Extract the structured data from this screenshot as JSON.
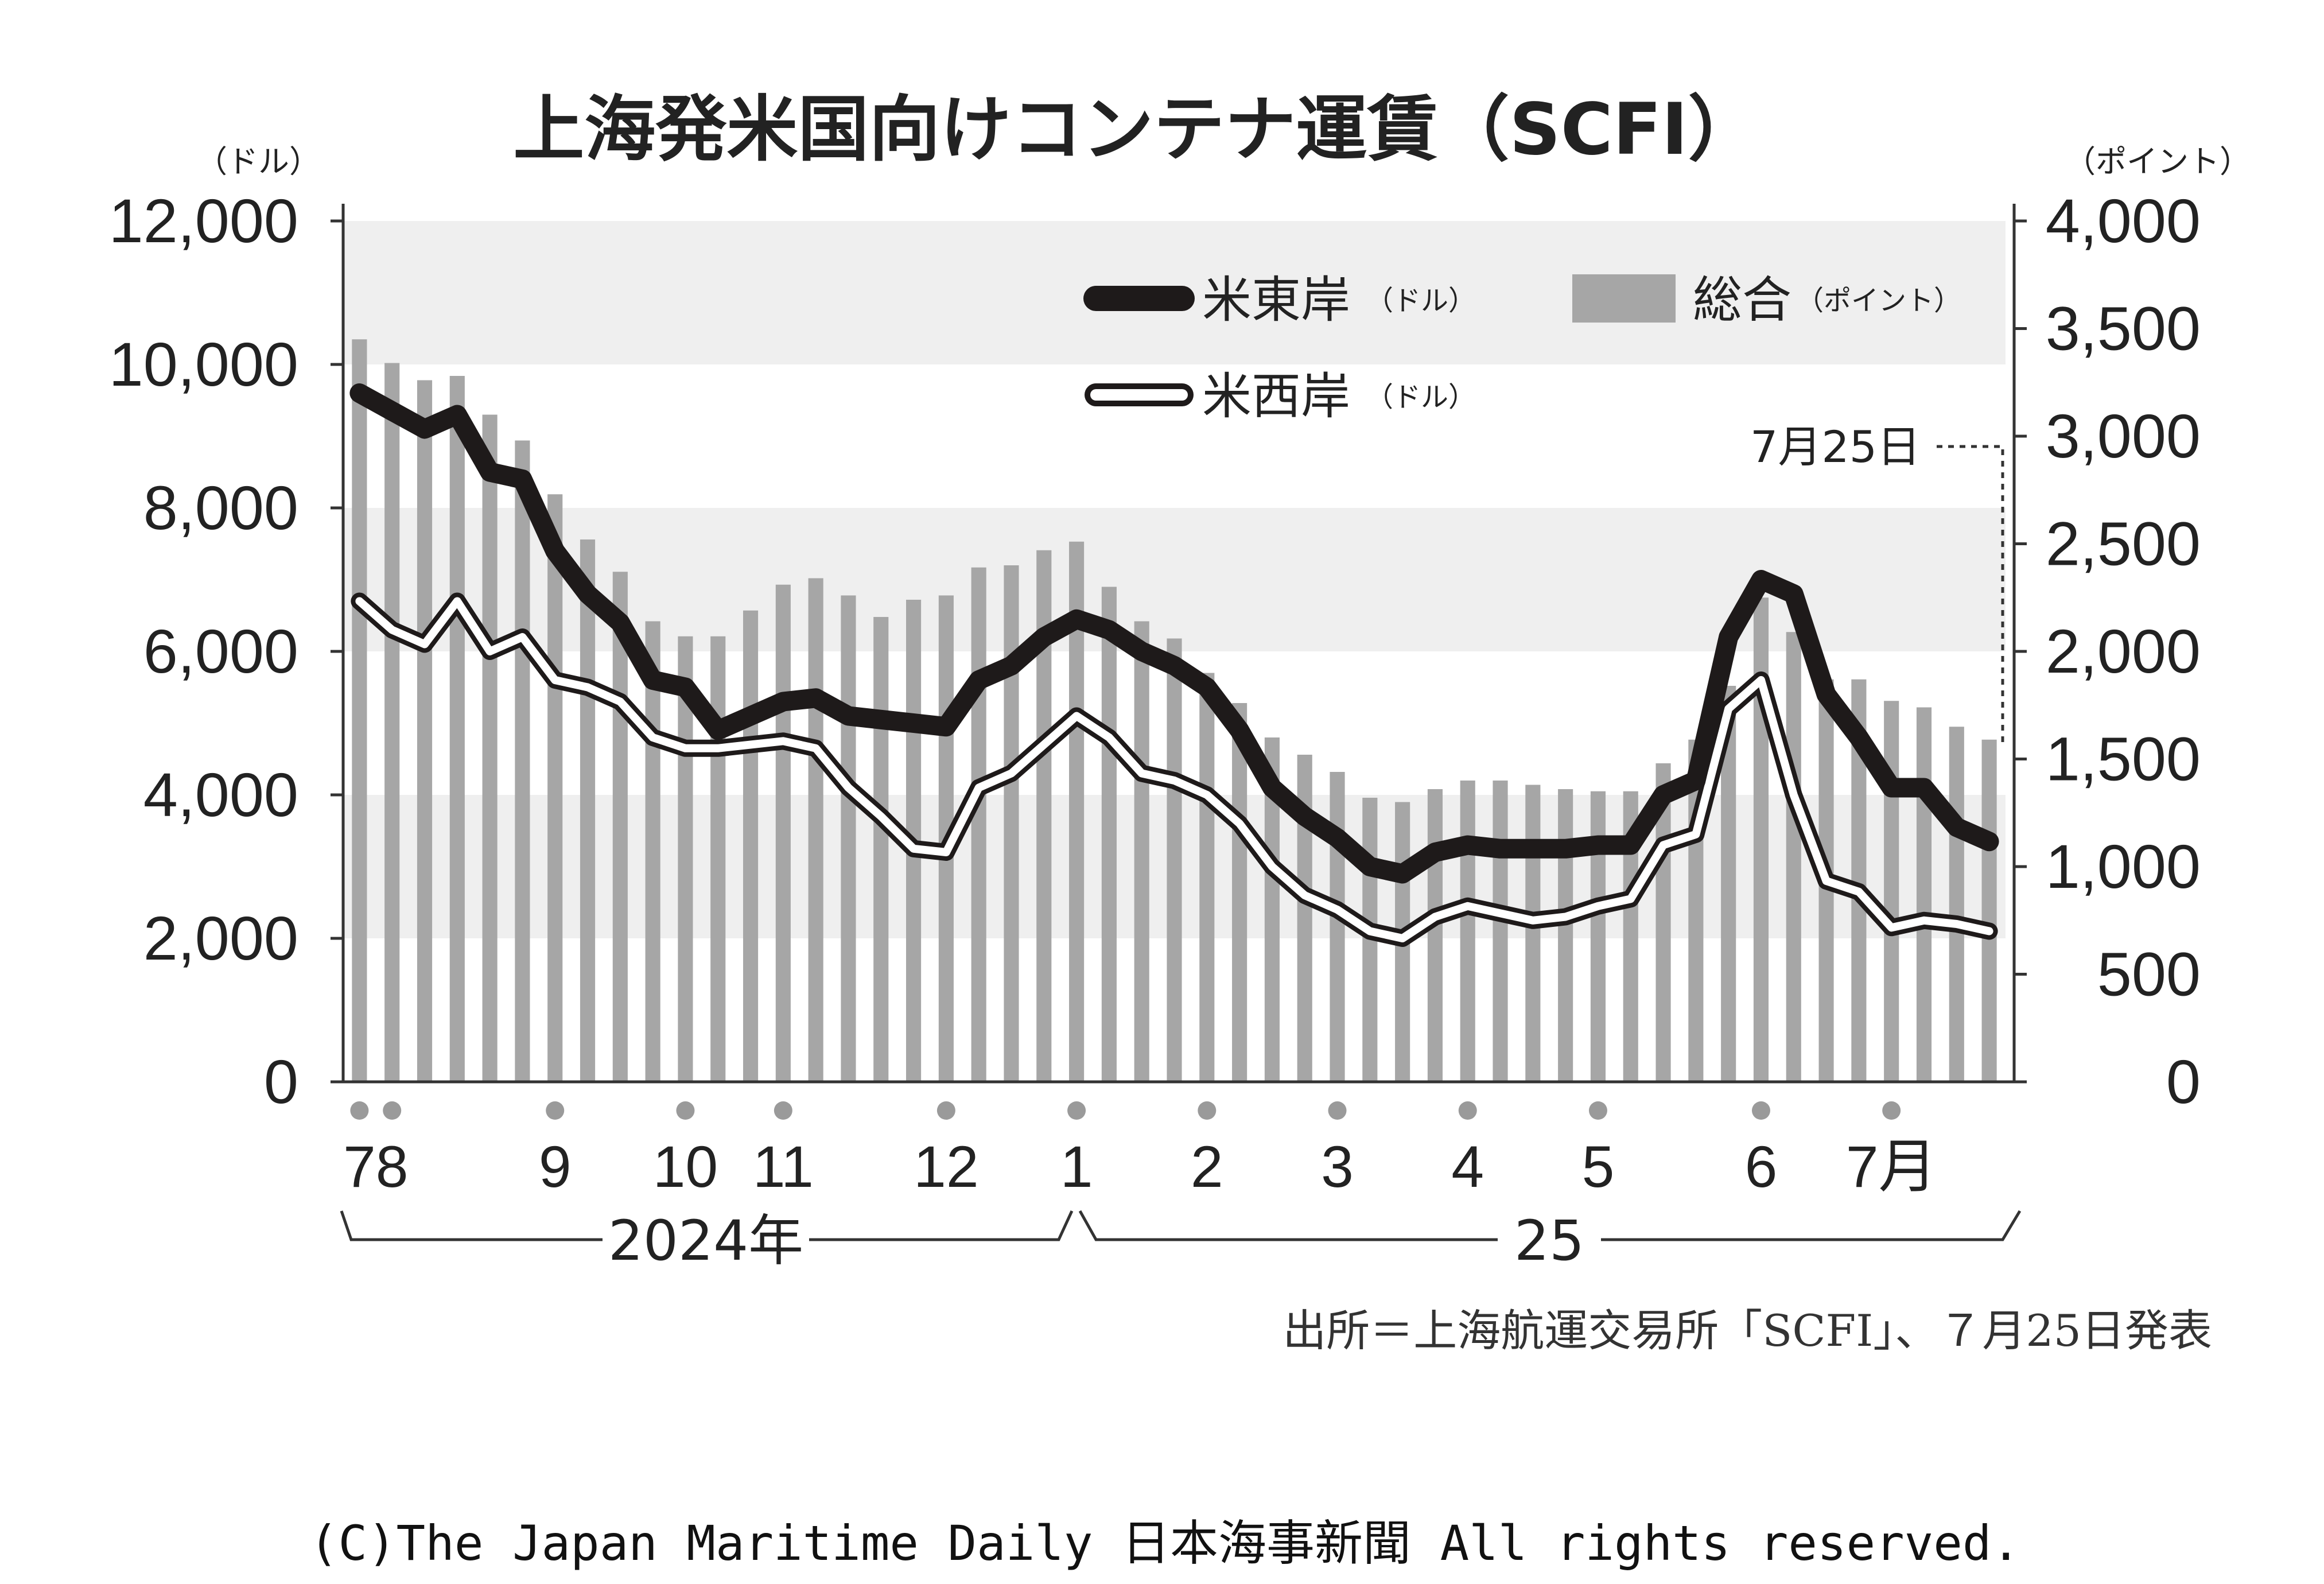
{
  "title": "上海発米国向けコンテナ運賃（SCFI）",
  "left_unit": "（ドル）",
  "right_unit": "（ポイント）",
  "left_ticks": [
    "0",
    "2,000",
    "4,000",
    "6,000",
    "8,000",
    "10,000",
    "12,000"
  ],
  "right_ticks": [
    "0",
    "500",
    "1,000",
    "1,500",
    "2,000",
    "2,500",
    "3,000",
    "3,500",
    "4,000"
  ],
  "legend": {
    "east": {
      "label": "米東岸",
      "unit": "（ドル）"
    },
    "west": {
      "label": "米西岸",
      "unit": "（ドル）"
    },
    "composite": {
      "label": "総合",
      "unit": "（ポイント）"
    }
  },
  "annotation": "7月25日",
  "month_labels": [
    {
      "label": "78",
      "week": 0.5
    },
    {
      "label": "9",
      "week": 6
    },
    {
      "label": "10",
      "week": 10
    },
    {
      "label": "11",
      "week": 13
    },
    {
      "label": "12",
      "week": 18
    },
    {
      "label": "1",
      "week": 22
    },
    {
      "label": "2",
      "week": 26
    },
    {
      "label": "3",
      "week": 30
    },
    {
      "label": "4",
      "week": 34
    },
    {
      "label": "5",
      "week": 38
    },
    {
      "label": "6",
      "week": 43
    },
    {
      "label": "7月",
      "week": 47
    }
  ],
  "month_dots": [
    0,
    1,
    6,
    10,
    13,
    18,
    22,
    26,
    30,
    34,
    38,
    43,
    47
  ],
  "year_labels": {
    "y2024": "2024年",
    "y2025": "25"
  },
  "source": "出所＝上海航運交易所「SCFI」、７月25日発表",
  "copyright": "(C)The Japan Maritime Daily 日本海事新聞 All rights reserved.",
  "colors": {
    "bar": "#a6a6a6",
    "east_line": "#1e1a1a",
    "west_line": "#1e1a1a",
    "band": "#efefef"
  },
  "chart_data": {
    "type": "bar+line",
    "title": "上海発米国向けコンテナ運賃（SCFI）",
    "x_unit": "week (2024-07 to 2025-07-25)",
    "left_axis": {
      "unit": "ドル",
      "ylim": [
        0,
        12000
      ]
    },
    "right_axis": {
      "unit": "ポイント",
      "ylim": [
        0,
        4000
      ]
    },
    "series": [
      {
        "name": "総合",
        "kind": "bar",
        "axis": "right",
        "values": [
          3450,
          3340,
          3260,
          3280,
          3100,
          2980,
          2730,
          2520,
          2370,
          2140,
          2070,
          2070,
          2190,
          2310,
          2340,
          2260,
          2160,
          2240,
          2260,
          2390,
          2400,
          2470,
          2510,
          2300,
          2140,
          2060,
          1900,
          1760,
          1600,
          1520,
          1440,
          1320,
          1300,
          1360,
          1400,
          1400,
          1380,
          1360,
          1350,
          1350,
          1480,
          1590,
          1840,
          2250,
          2090,
          1870,
          1870,
          1770,
          1740,
          1650,
          1590
        ]
      },
      {
        "name": "米東岸",
        "kind": "line",
        "axis": "left",
        "values": [
          9600,
          9350,
          9100,
          9300,
          8500,
          8400,
          7400,
          6800,
          6400,
          5600,
          5500,
          4900,
          5100,
          5300,
          5350,
          5100,
          5050,
          5000,
          4950,
          5600,
          5800,
          6200,
          6450,
          6300,
          6000,
          5800,
          5500,
          4900,
          4100,
          3700,
          3400,
          3000,
          2900,
          3200,
          3300,
          3250,
          3250,
          3250,
          3300,
          3300,
          4000,
          4200,
          6200,
          7000,
          6800,
          5400,
          4800,
          4100,
          4100,
          3550,
          3350
        ]
      },
      {
        "name": "米西岸",
        "kind": "line",
        "axis": "left",
        "values": [
          6700,
          6300,
          6100,
          6700,
          6000,
          6200,
          5600,
          5500,
          5300,
          4800,
          4650,
          4650,
          4700,
          4750,
          4650,
          4100,
          3700,
          3250,
          3200,
          4100,
          4300,
          4700,
          5100,
          4800,
          4300,
          4200,
          4000,
          3600,
          3000,
          2600,
          2400,
          2100,
          2000,
          2300,
          2450,
          2350,
          2250,
          2300,
          2450,
          2550,
          3300,
          3450,
          5200,
          5600,
          4000,
          2800,
          2650,
          2150,
          2250,
          2200,
          2100
        ]
      }
    ],
    "bands_left_axis": [
      [
        2000,
        4000
      ],
      [
        6000,
        8000
      ],
      [
        10000,
        12000
      ]
    ],
    "grid": false,
    "legend_position": "top-right"
  }
}
